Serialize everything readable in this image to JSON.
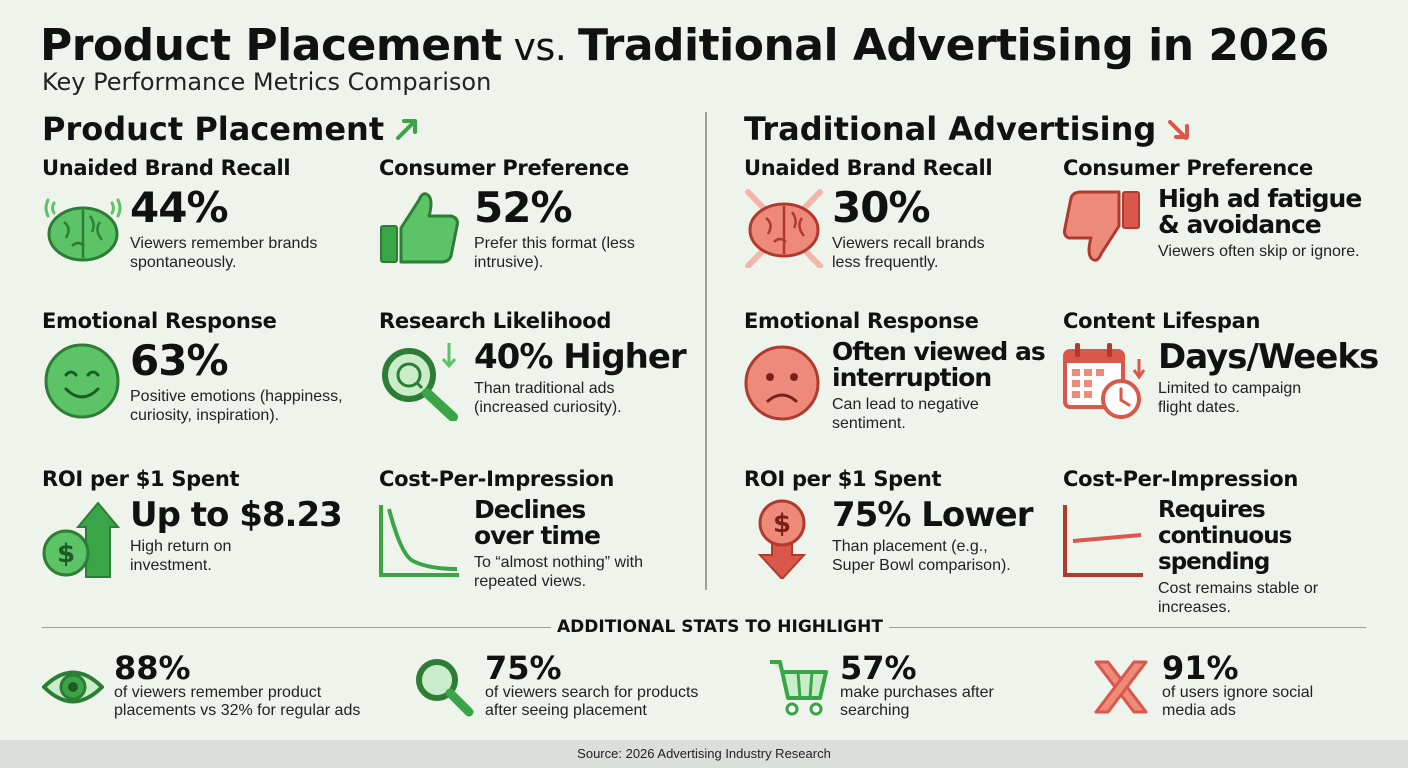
{
  "header": {
    "title_a": "Product Placement",
    "title_vs": " vs. ",
    "title_b": "Traditional Advertising in 2026",
    "subtitle": "Key Performance Metrics Comparison"
  },
  "colors": {
    "green": "#3aa547",
    "green_light": "#5cc466",
    "red": "#d9584a",
    "red_light": "#ee8a7a"
  },
  "product_placement": {
    "heading": "Product Placement",
    "heading_icon": "arrow-up-right-icon",
    "metrics": [
      {
        "title": "Unaided Brand Recall",
        "value": "44%",
        "desc": "Viewers remember brands spontaneously.",
        "icon": "brain-icon"
      },
      {
        "title": "Consumer Preference",
        "value": "52%",
        "desc": "Prefer this format (less intrusive).",
        "icon": "thumbs-up-icon"
      },
      {
        "title": "Emotional Response",
        "value": "63%",
        "desc": "Positive emotions (happiness, curiosity, inspiration).",
        "icon": "smiley-icon"
      },
      {
        "title": "Research Likelihood",
        "value": "40% Higher",
        "desc": "Than traditional ads (increased curiosity).",
        "icon": "magnifier-icon"
      },
      {
        "title": "ROI per $1 Spent",
        "value": "Up to $8.23",
        "desc": "High return on investment.",
        "icon": "dollar-up-icon"
      },
      {
        "title": "Cost-Per-Impression",
        "value": "Declines over time",
        "desc": "To “almost nothing” with repeated views.",
        "icon": "declining-chart-icon"
      }
    ]
  },
  "traditional": {
    "heading": "Traditional Advertising",
    "heading_icon": "arrow-down-right-icon",
    "metrics": [
      {
        "title": "Unaided Brand Recall",
        "value": "30%",
        "desc": "Viewers recall brands less frequently.",
        "icon": "brain-crossed-icon"
      },
      {
        "title": "Consumer Preference",
        "value": "High ad fatigue & avoidance",
        "desc": "Viewers often skip or ignore.",
        "icon": "thumbs-down-icon"
      },
      {
        "title": "Emotional Response",
        "value": "Often viewed as interruption",
        "desc": "Can lead to negative sentiment.",
        "icon": "frown-icon"
      },
      {
        "title": "Content Lifespan",
        "value": "Days/Weeks",
        "desc": "Limited to campaign flight dates.",
        "icon": "calendar-clock-icon"
      },
      {
        "title": "ROI per $1 Spent",
        "value": "75% Lower",
        "desc": "Than placement (e.g., Super Bowl comparison).",
        "icon": "dollar-down-icon"
      },
      {
        "title": "Cost-Per-Impression",
        "value": "Requires continuous spending",
        "desc": "Cost remains stable or increases.",
        "icon": "flat-chart-icon"
      }
    ]
  },
  "additional": {
    "title": "ADDITIONAL STATS TO HIGHLIGHT",
    "stats": [
      {
        "value": "88%",
        "desc": "of viewers remember product placements vs 32% for regular ads",
        "icon": "eye-icon"
      },
      {
        "value": "75%",
        "desc": "of viewers search for products after seeing placement",
        "icon": "search-icon"
      },
      {
        "value": "57%",
        "desc": "make purchases after searching",
        "icon": "cart-icon"
      },
      {
        "value": "91%",
        "desc": "of users ignore social media ads",
        "icon": "x-mark-icon"
      }
    ]
  },
  "footer": {
    "source": "Source: 2026 Advertising Industry Research"
  }
}
